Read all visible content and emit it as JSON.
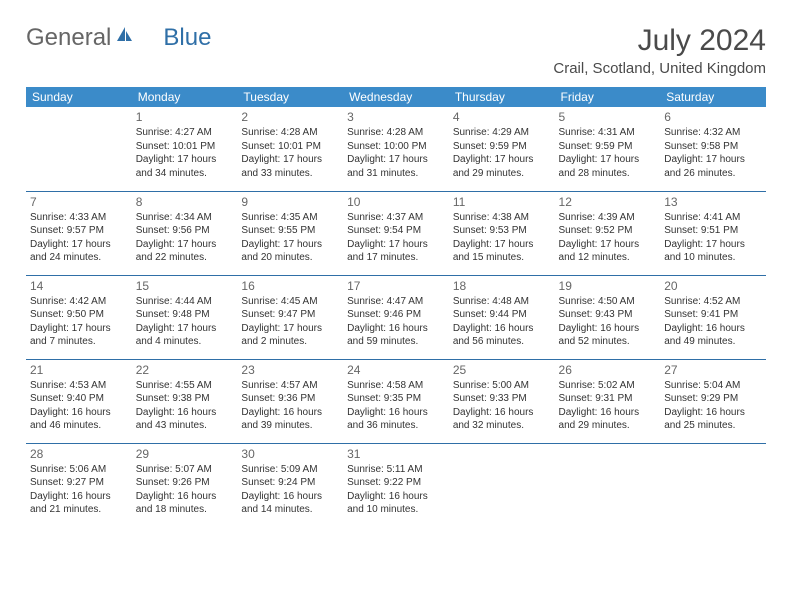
{
  "logo": {
    "general": "General",
    "blue": "Blue"
  },
  "title": "July 2024",
  "location": "Crail, Scotland, United Kingdom",
  "colors": {
    "header_bg": "#3b8bc9",
    "header_text": "#ffffff",
    "cell_border": "#2f6fa7",
    "text": "#333333",
    "daynum": "#666666",
    "logo_blue": "#2f6fa7"
  },
  "daysOfWeek": [
    "Sunday",
    "Monday",
    "Tuesday",
    "Wednesday",
    "Thursday",
    "Friday",
    "Saturday"
  ],
  "weeks": [
    [
      null,
      {
        "n": "1",
        "sr": "4:27 AM",
        "ss": "10:01 PM",
        "d1": "17 hours",
        "d2": "34 minutes."
      },
      {
        "n": "2",
        "sr": "4:28 AM",
        "ss": "10:01 PM",
        "d1": "17 hours",
        "d2": "33 minutes."
      },
      {
        "n": "3",
        "sr": "4:28 AM",
        "ss": "10:00 PM",
        "d1": "17 hours",
        "d2": "31 minutes."
      },
      {
        "n": "4",
        "sr": "4:29 AM",
        "ss": "9:59 PM",
        "d1": "17 hours",
        "d2": "29 minutes."
      },
      {
        "n": "5",
        "sr": "4:31 AM",
        "ss": "9:59 PM",
        "d1": "17 hours",
        "d2": "28 minutes."
      },
      {
        "n": "6",
        "sr": "4:32 AM",
        "ss": "9:58 PM",
        "d1": "17 hours",
        "d2": "26 minutes."
      }
    ],
    [
      {
        "n": "7",
        "sr": "4:33 AM",
        "ss": "9:57 PM",
        "d1": "17 hours",
        "d2": "24 minutes."
      },
      {
        "n": "8",
        "sr": "4:34 AM",
        "ss": "9:56 PM",
        "d1": "17 hours",
        "d2": "22 minutes."
      },
      {
        "n": "9",
        "sr": "4:35 AM",
        "ss": "9:55 PM",
        "d1": "17 hours",
        "d2": "20 minutes."
      },
      {
        "n": "10",
        "sr": "4:37 AM",
        "ss": "9:54 PM",
        "d1": "17 hours",
        "d2": "17 minutes."
      },
      {
        "n": "11",
        "sr": "4:38 AM",
        "ss": "9:53 PM",
        "d1": "17 hours",
        "d2": "15 minutes."
      },
      {
        "n": "12",
        "sr": "4:39 AM",
        "ss": "9:52 PM",
        "d1": "17 hours",
        "d2": "12 minutes."
      },
      {
        "n": "13",
        "sr": "4:41 AM",
        "ss": "9:51 PM",
        "d1": "17 hours",
        "d2": "10 minutes."
      }
    ],
    [
      {
        "n": "14",
        "sr": "4:42 AM",
        "ss": "9:50 PM",
        "d1": "17 hours",
        "d2": "7 minutes."
      },
      {
        "n": "15",
        "sr": "4:44 AM",
        "ss": "9:48 PM",
        "d1": "17 hours",
        "d2": "4 minutes."
      },
      {
        "n": "16",
        "sr": "4:45 AM",
        "ss": "9:47 PM",
        "d1": "17 hours",
        "d2": "2 minutes."
      },
      {
        "n": "17",
        "sr": "4:47 AM",
        "ss": "9:46 PM",
        "d1": "16 hours",
        "d2": "59 minutes."
      },
      {
        "n": "18",
        "sr": "4:48 AM",
        "ss": "9:44 PM",
        "d1": "16 hours",
        "d2": "56 minutes."
      },
      {
        "n": "19",
        "sr": "4:50 AM",
        "ss": "9:43 PM",
        "d1": "16 hours",
        "d2": "52 minutes."
      },
      {
        "n": "20",
        "sr": "4:52 AM",
        "ss": "9:41 PM",
        "d1": "16 hours",
        "d2": "49 minutes."
      }
    ],
    [
      {
        "n": "21",
        "sr": "4:53 AM",
        "ss": "9:40 PM",
        "d1": "16 hours",
        "d2": "46 minutes."
      },
      {
        "n": "22",
        "sr": "4:55 AM",
        "ss": "9:38 PM",
        "d1": "16 hours",
        "d2": "43 minutes."
      },
      {
        "n": "23",
        "sr": "4:57 AM",
        "ss": "9:36 PM",
        "d1": "16 hours",
        "d2": "39 minutes."
      },
      {
        "n": "24",
        "sr": "4:58 AM",
        "ss": "9:35 PM",
        "d1": "16 hours",
        "d2": "36 minutes."
      },
      {
        "n": "25",
        "sr": "5:00 AM",
        "ss": "9:33 PM",
        "d1": "16 hours",
        "d2": "32 minutes."
      },
      {
        "n": "26",
        "sr": "5:02 AM",
        "ss": "9:31 PM",
        "d1": "16 hours",
        "d2": "29 minutes."
      },
      {
        "n": "27",
        "sr": "5:04 AM",
        "ss": "9:29 PM",
        "d1": "16 hours",
        "d2": "25 minutes."
      }
    ],
    [
      {
        "n": "28",
        "sr": "5:06 AM",
        "ss": "9:27 PM",
        "d1": "16 hours",
        "d2": "21 minutes."
      },
      {
        "n": "29",
        "sr": "5:07 AM",
        "ss": "9:26 PM",
        "d1": "16 hours",
        "d2": "18 minutes."
      },
      {
        "n": "30",
        "sr": "5:09 AM",
        "ss": "9:24 PM",
        "d1": "16 hours",
        "d2": "14 minutes."
      },
      {
        "n": "31",
        "sr": "5:11 AM",
        "ss": "9:22 PM",
        "d1": "16 hours",
        "d2": "10 minutes."
      },
      null,
      null,
      null
    ]
  ]
}
